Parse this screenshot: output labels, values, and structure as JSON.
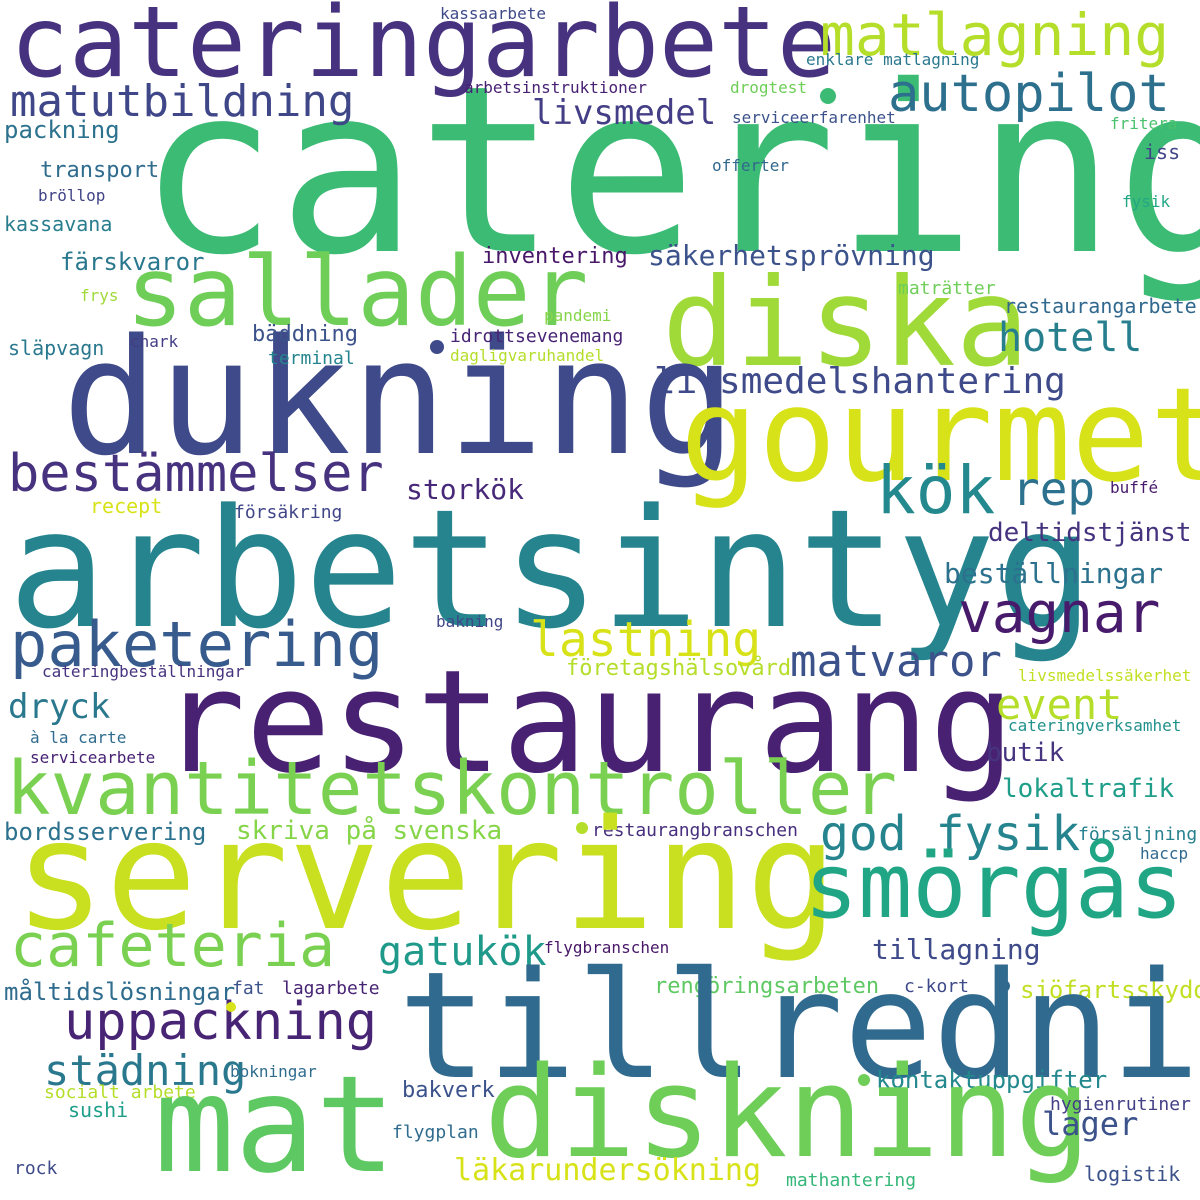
{
  "colors": {
    "background": "#ffffff",
    "viridis_dark_purple": "#46327e",
    "viridis_purple": "#482173",
    "viridis_indigo": "#3e4a89",
    "viridis_blue": "#31688e",
    "viridis_teal": "#26828e",
    "viridis_teal_light": "#1f9e89",
    "viridis_green": "#35b779",
    "viridis_lime": "#6ece58",
    "viridis_yellow_green": "#b5de2b",
    "viridis_yellow": "#d8e219"
  },
  "words": [
    {
      "text": "catering",
      "color": "#3cbb75"
    },
    {
      "text": "cateringarbete",
      "color": "#46327e"
    },
    {
      "text": "matlagning",
      "color": "#b5de2b"
    },
    {
      "text": "autopilot",
      "color": "#2d708e"
    },
    {
      "text": "matutbildning",
      "color": "#3f4788"
    },
    {
      "text": "livsmedel",
      "color": "#433e85"
    },
    {
      "text": "kassaarbete",
      "color": "#3e4a89"
    },
    {
      "text": "enklare matlagning",
      "color": "#2a788e"
    },
    {
      "text": "arbetsinstruktioner",
      "color": "#482173"
    },
    {
      "text": "drogtest",
      "color": "#6ece58"
    },
    {
      "text": "serviceerfarenhet",
      "color": "#3b528b"
    },
    {
      "text": "packning",
      "color": "#2c728e"
    },
    {
      "text": "transport",
      "color": "#2f6c8e"
    },
    {
      "text": "bröllop",
      "color": "#414487"
    },
    {
      "text": "kassavana",
      "color": "#287d8e"
    },
    {
      "text": "offerter",
      "color": "#31688e"
    },
    {
      "text": "iss",
      "color": "#404688"
    },
    {
      "text": "fritera",
      "color": "#4ac16d"
    },
    {
      "text": "fysik",
      "color": "#22a785"
    },
    {
      "text": "sallader",
      "color": "#6ece58"
    },
    {
      "text": "diska",
      "color": "#a0da39"
    },
    {
      "text": "dukning",
      "color": "#3e4a89"
    },
    {
      "text": "gourmet",
      "color": "#d8e219"
    },
    {
      "text": "färskvaror",
      "color": "#2a788e"
    },
    {
      "text": "frys",
      "color": "#a0da39"
    },
    {
      "text": "inventering",
      "color": "#481769"
    },
    {
      "text": "säkerhetsprövning",
      "color": "#3b528b"
    },
    {
      "text": "maträtter",
      "color": "#6ece58"
    },
    {
      "text": "pandemi",
      "color": "#86d549"
    },
    {
      "text": "restaurangarbete",
      "color": "#31688e"
    },
    {
      "text": "bäddning",
      "color": "#3b528b"
    },
    {
      "text": "släpvagn",
      "color": "#2a788e"
    },
    {
      "text": "chark",
      "color": "#433e85"
    },
    {
      "text": "terminal",
      "color": "#25858e"
    },
    {
      "text": "idrottsevenemang",
      "color": "#482475"
    },
    {
      "text": "dagligvaruhandel",
      "color": "#b5de2b"
    },
    {
      "text": "hotell",
      "color": "#277f8e"
    },
    {
      "text": "livsmedelshantering",
      "color": "#3e4a89"
    },
    {
      "text": "bestämmelser",
      "color": "#46327e"
    },
    {
      "text": "kök",
      "color": "#23898e"
    },
    {
      "text": "rep",
      "color": "#2c728e"
    },
    {
      "text": "storkök",
      "color": "#482878"
    },
    {
      "text": "arbetsintyg",
      "color": "#25848e"
    },
    {
      "text": "recept",
      "color": "#d8e219"
    },
    {
      "text": "försäkring",
      "color": "#404688"
    },
    {
      "text": "buffé",
      "color": "#481a6c"
    },
    {
      "text": "deltidstjänst",
      "color": "#46337f"
    },
    {
      "text": "beställningar",
      "color": "#2c728e"
    },
    {
      "text": "vagnar",
      "color": "#481a6c"
    },
    {
      "text": "paketering",
      "color": "#375b8d"
    },
    {
      "text": "lastning",
      "color": "#d8e219"
    },
    {
      "text": "matvaror",
      "color": "#3b528b"
    },
    {
      "text": "bakning",
      "color": "#3f4788"
    },
    {
      "text": "restaurang",
      "color": "#482173"
    },
    {
      "text": "cateringbeställningar",
      "color": "#46327e"
    },
    {
      "text": "företagshälsovård",
      "color": "#b5de2b"
    },
    {
      "text": "livsmedelssäkerhet",
      "color": "#c2df23"
    },
    {
      "text": "dryck",
      "color": "#2a788e"
    },
    {
      "text": "event",
      "color": "#b5de2b"
    },
    {
      "text": "cateringverksamhet",
      "color": "#21918c"
    },
    {
      "text": "à la carte",
      "color": "#2f6c8e"
    },
    {
      "text": "servicearbete",
      "color": "#482173"
    },
    {
      "text": "butik",
      "color": "#463480"
    },
    {
      "text": "kvantitetskontroller",
      "color": "#7ad151"
    },
    {
      "text": "lokaltrafik",
      "color": "#1f9e89"
    },
    {
      "text": "bordsservering",
      "color": "#2c728e"
    },
    {
      "text": "skriva på svenska",
      "color": "#86d549"
    },
    {
      "text": "restaurangbranschen",
      "color": "#472f7d"
    },
    {
      "text": "god fysik",
      "color": "#25848e"
    },
    {
      "text": "försäljning",
      "color": "#27808e"
    },
    {
      "text": "haccp",
      "color": "#31688e"
    },
    {
      "text": "servering",
      "color": "#c8e020"
    },
    {
      "text": "smörgås",
      "color": "#21a685"
    },
    {
      "text": "cafeteria",
      "color": "#7ad151"
    },
    {
      "text": "gatukök",
      "color": "#1f9a8a"
    },
    {
      "text": "flygbranschen",
      "color": "#481769"
    },
    {
      "text": "tillagning",
      "color": "#3e4a89"
    },
    {
      "text": "måltidslösningar",
      "color": "#2f6c8e"
    },
    {
      "text": "fat",
      "color": "#3b528b"
    },
    {
      "text": "lagarbete",
      "color": "#482475"
    },
    {
      "text": "rengöringsarbeten",
      "color": "#5ec962"
    },
    {
      "text": "c-kort",
      "color": "#3e4a89"
    },
    {
      "text": "sjöfartsskydd",
      "color": "#c2df23"
    },
    {
      "text": "tillredning",
      "color": "#306a8e"
    },
    {
      "text": "uppackning",
      "color": "#482475"
    },
    {
      "text": "städning",
      "color": "#2a788e"
    },
    {
      "text": "bokningar",
      "color": "#2f6c8e"
    },
    {
      "text": "kontaktuppgifter",
      "color": "#23898e"
    },
    {
      "text": "socialt arbete",
      "color": "#b5de2b"
    },
    {
      "text": "sushi",
      "color": "#1f9e89"
    },
    {
      "text": "bakverk",
      "color": "#3b528b"
    },
    {
      "text": "mat",
      "color": "#5ec962"
    },
    {
      "text": "diskning",
      "color": "#6ece58"
    },
    {
      "text": "hygienrutiner",
      "color": "#424086"
    },
    {
      "text": "lager",
      "color": "#3b528b"
    },
    {
      "text": "flygplan",
      "color": "#2f6c8e"
    },
    {
      "text": "läkarundersökning",
      "color": "#d8e219"
    },
    {
      "text": "rock",
      "color": "#3e4a89"
    },
    {
      "text": "mathantering",
      "color": "#35b779"
    },
    {
      "text": "logistik",
      "color": "#3b528b"
    }
  ],
  "dots": [
    {
      "color": "#3cbb75"
    },
    {
      "color": "#3e4a89"
    },
    {
      "color": "#b5de2b"
    },
    {
      "color": "#31688e"
    },
    {
      "color": "#6ece58"
    },
    {
      "color": "#d8e219"
    }
  ]
}
